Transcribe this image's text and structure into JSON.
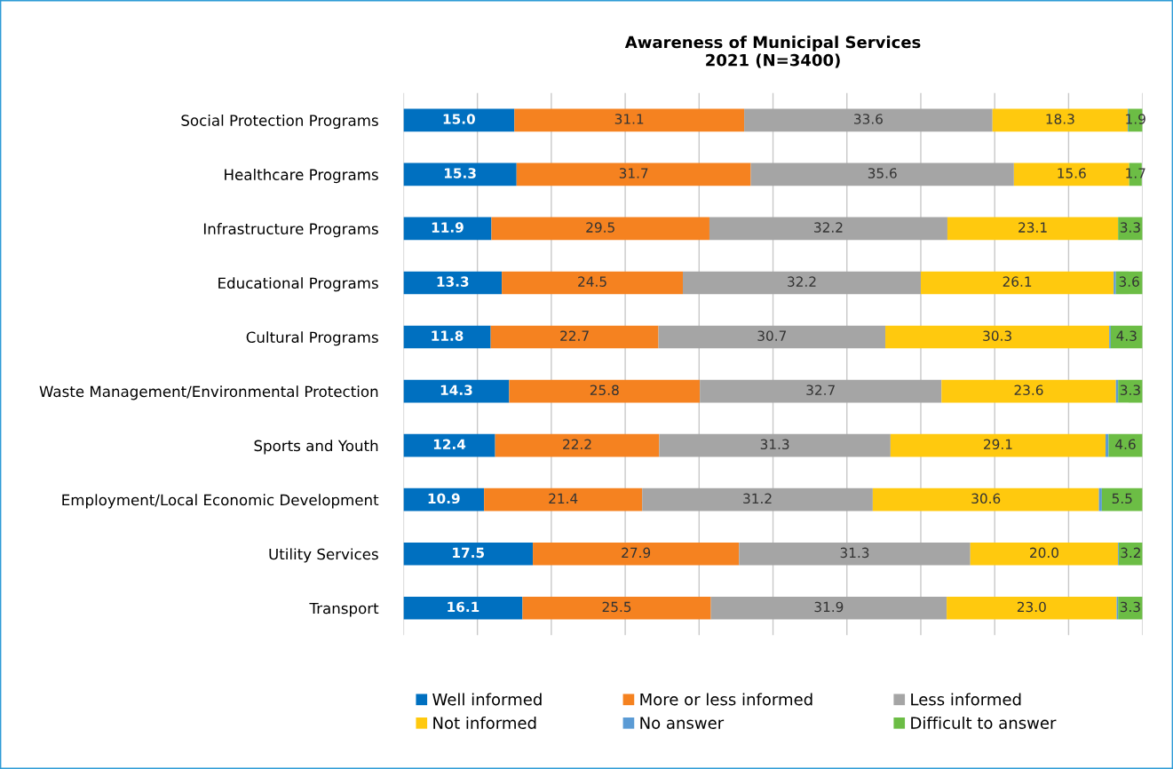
{
  "chart_data": {
    "type": "bar",
    "orientation": "horizontal",
    "stacked": true,
    "title": "Awareness of Municipal Services\n2021 (N=3400)",
    "categories": [
      "Social Protection Programs",
      "Healthcare Programs",
      "Infrastructure Programs",
      "Educational Programs",
      "Cultural Programs",
      "Waste Management/Environmental Protection",
      "Sports and Youth",
      "Employment/Local Economic Development",
      "Utility Services",
      "Transport"
    ],
    "series": [
      {
        "name": "Well informed",
        "color": "#0070c0",
        "values": [
          15.0,
          15.3,
          11.9,
          13.3,
          11.8,
          14.3,
          12.4,
          10.9,
          17.5,
          16.1
        ],
        "value_labels": [
          "15.0",
          "15.3",
          "11.9",
          "13.3",
          "11.8",
          "14.3",
          "12.4",
          "10.9",
          "17.5",
          "16.1"
        ]
      },
      {
        "name": "More or less informed",
        "color": "#f58220",
        "values": [
          31.1,
          31.7,
          29.5,
          24.5,
          22.7,
          25.8,
          22.2,
          21.4,
          27.9,
          25.5
        ],
        "value_labels": [
          "31.1",
          "31.7",
          "29.5",
          "24.5",
          "22.7",
          "25.8",
          "22.2",
          "21.4",
          "27.9",
          "25.5"
        ]
      },
      {
        "name": "Less informed",
        "color": "#a5a5a5",
        "values": [
          33.6,
          35.6,
          32.2,
          32.2,
          30.7,
          32.7,
          31.3,
          31.2,
          31.3,
          31.9
        ],
        "value_labels": [
          "33.6",
          "35.6",
          "32.2",
          "32.2",
          "30.7",
          "32.7",
          "31.3",
          "31.2",
          "31.3",
          "31.9"
        ]
      },
      {
        "name": "Not informed",
        "color": "#ffc90e",
        "values": [
          18.3,
          15.6,
          23.1,
          26.1,
          30.3,
          23.6,
          29.1,
          30.6,
          20.0,
          23.0
        ],
        "value_labels": [
          "18.3",
          "15.6",
          "23.1",
          "26.1",
          "30.3",
          "23.6",
          "29.1",
          "30.6",
          "20.0",
          "23.0"
        ]
      },
      {
        "name": "No answer",
        "color": "#5b9bd5",
        "values": [
          0.1,
          null,
          0.0,
          0.3,
          0.2,
          0.3,
          0.4,
          0.4,
          0.1,
          0.2
        ],
        "value_labels": [
          null,
          null,
          null,
          null,
          null,
          null,
          null,
          null,
          null,
          null
        ]
      },
      {
        "name": "Difficult to answer",
        "color": "#6cbd45",
        "values": [
          1.9,
          1.7,
          3.3,
          3.6,
          4.3,
          3.3,
          4.6,
          5.5,
          3.2,
          3.3
        ],
        "value_labels": [
          "1.9",
          "1.7",
          "3.3",
          "3.6",
          "4.3",
          "3.3",
          "4.6",
          "5.5",
          "3.2",
          "3.3"
        ]
      }
    ],
    "xlim": [
      0,
      100
    ],
    "xticks": [
      {
        "value": 0,
        "label": null
      },
      {
        "value": 10,
        "label": null
      },
      {
        "value": 20,
        "label": null
      },
      {
        "value": 30,
        "label": null
      },
      {
        "value": 40,
        "label": null
      },
      {
        "value": 50,
        "label": null
      },
      {
        "value": 60,
        "label": null
      },
      {
        "value": 70,
        "label": null
      },
      {
        "value": 80,
        "label": null
      },
      {
        "value": 90,
        "label": null
      },
      {
        "value": 100,
        "label": null
      }
    ],
    "tick_labels": "y",
    "grid": "x",
    "legend": "bottom"
  }
}
